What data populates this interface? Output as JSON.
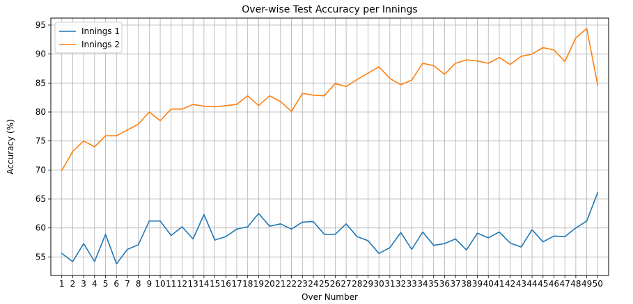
{
  "chart_data": {
    "type": "line",
    "title": "Over-wise Test Accuracy per Innings",
    "xlabel": "Over Number",
    "ylabel": "Accuracy (%)",
    "x": [
      1,
      2,
      3,
      4,
      5,
      6,
      7,
      8,
      9,
      10,
      11,
      12,
      13,
      14,
      15,
      16,
      17,
      18,
      19,
      20,
      21,
      22,
      23,
      24,
      25,
      26,
      27,
      28,
      29,
      30,
      31,
      32,
      33,
      34,
      35,
      36,
      37,
      38,
      39,
      40,
      41,
      42,
      43,
      44,
      45,
      46,
      47,
      48,
      49,
      50
    ],
    "xticks": [
      "1",
      "2",
      "3",
      "4",
      "5",
      "6",
      "7",
      "8",
      "9",
      "10",
      "11",
      "12",
      "13",
      "14",
      "15",
      "16",
      "17",
      "18",
      "19",
      "20",
      "21",
      "22",
      "23",
      "24",
      "25",
      "26",
      "27",
      "28",
      "29",
      "30",
      "31",
      "32",
      "33",
      "34",
      "35",
      "36",
      "37",
      "38",
      "39",
      "40",
      "41",
      "42",
      "43",
      "44",
      "45",
      "46",
      "47",
      "48",
      "49",
      "50"
    ],
    "ylim": [
      51.8,
      96.2
    ],
    "yticks": [
      55,
      60,
      65,
      70,
      75,
      80,
      85,
      90,
      95
    ],
    "grid": true,
    "legend_position": "top-left",
    "series": [
      {
        "name": "Innings 1",
        "color": "#1f77b4",
        "values": [
          55.6,
          54.2,
          57.3,
          54.2,
          58.9,
          53.8,
          56.3,
          57.1,
          61.2,
          61.2,
          58.7,
          60.2,
          58.1,
          62.3,
          57.9,
          58.5,
          59.8,
          60.2,
          62.5,
          60.3,
          60.7,
          59.8,
          61.0,
          61.1,
          58.9,
          58.9,
          60.7,
          58.5,
          57.8,
          55.6,
          56.6,
          59.2,
          56.3,
          59.3,
          57.0,
          57.3,
          58.1,
          56.2,
          59.1,
          58.3,
          59.3,
          57.4,
          56.7,
          59.7,
          57.6,
          58.6,
          58.5,
          60.0,
          61.2,
          66.1
        ]
      },
      {
        "name": "Innings 2",
        "color": "#ff7f0e",
        "values": [
          69.9,
          73.2,
          75.0,
          74.0,
          75.9,
          75.9,
          76.9,
          77.9,
          80.0,
          78.5,
          80.5,
          80.5,
          81.3,
          81.0,
          80.9,
          81.1,
          81.3,
          82.8,
          81.1,
          82.8,
          81.8,
          80.1,
          83.2,
          82.9,
          82.8,
          84.9,
          84.4,
          85.6,
          86.7,
          87.8,
          85.8,
          84.7,
          85.5,
          88.4,
          88.0,
          86.5,
          88.4,
          89.0,
          88.8,
          88.4,
          89.4,
          88.2,
          89.6,
          90.0,
          91.1,
          90.7,
          88.7,
          92.8,
          94.4,
          84.6
        ]
      }
    ]
  }
}
